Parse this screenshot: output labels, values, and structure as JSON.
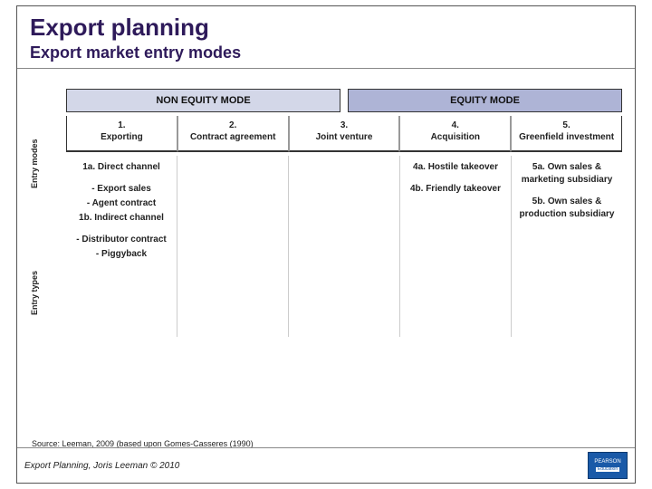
{
  "header": {
    "title": "Export planning",
    "subtitle": "Export market entry modes"
  },
  "mode_headers": {
    "non_equity": "NON EQUITY MODE",
    "equity": "EQUITY MODE",
    "non_equity_bg": "#d3d7e8",
    "equity_bg": "#aeb4d6"
  },
  "side_labels": {
    "modes": "Entry modes",
    "types": "Entry types"
  },
  "entry_modes": [
    {
      "num": "1.",
      "label": "Exporting"
    },
    {
      "num": "2.",
      "label": "Contract agreement"
    },
    {
      "num": "3.",
      "label": "Joint venture"
    },
    {
      "num": "4.",
      "label": "Acquisition"
    },
    {
      "num": "5.",
      "label": "Greenfield investment"
    }
  ],
  "entry_types": {
    "col1": {
      "a_head": "1a. Direct channel",
      "a_subs": [
        "- Export sales",
        "- Agent contract"
      ],
      "b_head": "1b. Indirect channel",
      "b_subs": [
        "- Distributor contract",
        "- Piggyback"
      ]
    },
    "col4": {
      "a": "4a. Hostile takeover",
      "b": "4b. Friendly takeover"
    },
    "col5": {
      "a": "5a. Own sales & marketing subsidiary",
      "b": "5b. Own sales & production subsidiary"
    }
  },
  "source": "Source: Leeman, 2009 (based upon Gomes-Casseres (1990)",
  "footer": {
    "text": "Export Planning, Joris Leeman © 2010",
    "logo_top": "PEARSON",
    "logo_bottom": "Education"
  },
  "colors": {
    "title": "#2e1a5a",
    "border": "#333333",
    "logo_bg": "#1a5aa8"
  }
}
